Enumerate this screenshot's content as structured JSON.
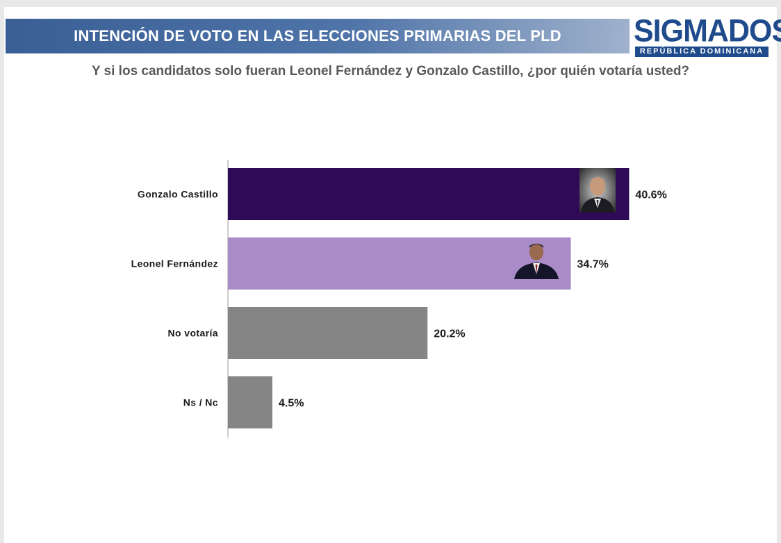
{
  "header": {
    "title": "INTENCIÓN DE VOTO EN LAS ELECCIONES PRIMARIAS DEL PLD",
    "logo_text": "SIGMADOS",
    "logo_subtext": "REPÚBLICA DOMINICANA",
    "banner_color": "#3a5f96",
    "logo_color": "#1f4b8c"
  },
  "question": "Y si los candidatos solo fueran Leonel Fernández y Gonzalo Castillo, ¿por quién votaría usted?",
  "chart_data": {
    "type": "bar",
    "orientation": "horizontal",
    "title": "",
    "xlabel": "",
    "ylabel": "",
    "categories": [
      "Gonzalo Castillo",
      "Leonel Fernández",
      "No votaría",
      "Ns / Nc"
    ],
    "values": [
      40.6,
      34.7,
      20.2,
      4.5
    ],
    "value_labels": [
      "40.6%",
      "34.7%",
      "20.2%",
      "4.5%"
    ],
    "colors": [
      "#2e0a57",
      "#a98bc7",
      "#858585",
      "#858585"
    ],
    "xlim": [
      0,
      45
    ],
    "grid": false,
    "legend": "none"
  }
}
